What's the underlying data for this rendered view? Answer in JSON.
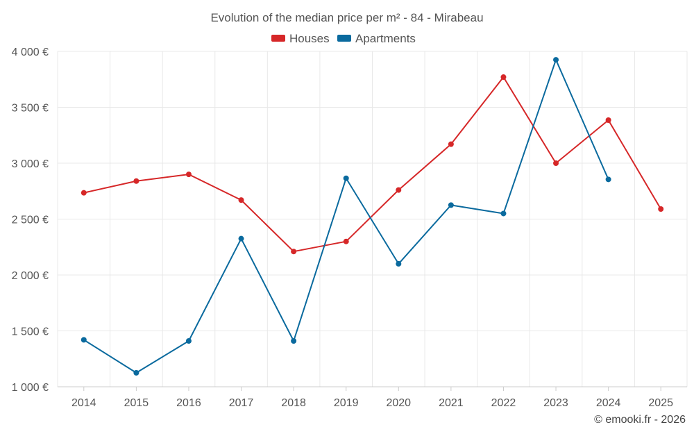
{
  "chart_data": {
    "type": "line",
    "title": "Evolution of the median price per m² - 84 - Mirabeau",
    "categories": [
      "2014",
      "2015",
      "2016",
      "2017",
      "2018",
      "2019",
      "2020",
      "2021",
      "2022",
      "2023",
      "2024",
      "2025"
    ],
    "y_ticks": [
      1000,
      1500,
      2000,
      2500,
      3000,
      3500,
      4000
    ],
    "y_tick_labels": [
      "1 000 €",
      "1 500 €",
      "2 000 €",
      "2 500 €",
      "3 000 €",
      "3 500 €",
      "4 000 €"
    ],
    "ylim": [
      1000,
      4000
    ],
    "grid": true,
    "legend_position": "top-center",
    "series": [
      {
        "name": "Houses",
        "color": "#d62728",
        "values": [
          2735,
          2840,
          2900,
          2670,
          2210,
          2300,
          2760,
          3170,
          3770,
          3000,
          3385,
          2590
        ]
      },
      {
        "name": "Apartments",
        "color": "#0a6a9e",
        "values": [
          1420,
          1125,
          1410,
          2325,
          1410,
          2865,
          2100,
          2625,
          2550,
          3925,
          2855,
          null
        ]
      }
    ],
    "credit": "© emooki.fr - 2026"
  }
}
